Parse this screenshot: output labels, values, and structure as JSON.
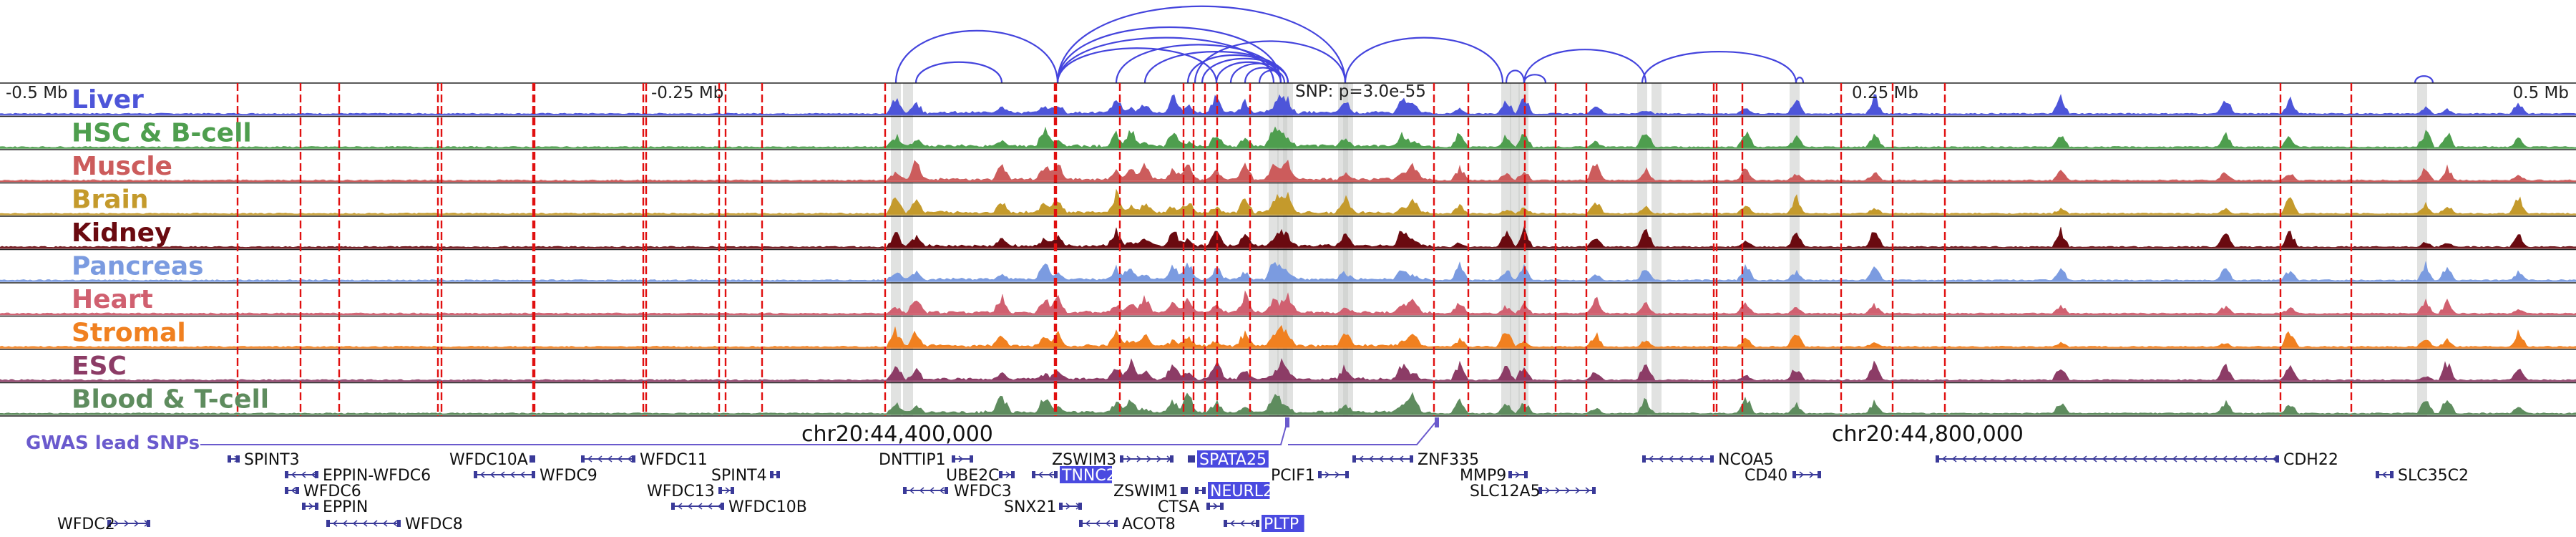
{
  "axis_labels": {
    "left": "-0.5 Mb",
    "mid_left": "-0.25 Mb",
    "mid_right": "0.25 Mb",
    "right": "0.5 Mb"
  },
  "snp_label": "SNP: p=3.0e-55",
  "gwas_label": "GWAS lead SNPs",
  "coords": [
    "chr20:44,400,000",
    "chr20:44,800,000"
  ],
  "tracks": [
    {
      "name": "Liver",
      "color": "#4d55d9"
    },
    {
      "name": "HSC & B-cell",
      "color": "#4e9e4e"
    },
    {
      "name": "Muscle",
      "color": "#cc5c5c"
    },
    {
      "name": "Brain",
      "color": "#c49a2c"
    },
    {
      "name": "Kidney",
      "color": "#6a0a10"
    },
    {
      "name": "Pancreas",
      "color": "#7b9be0"
    },
    {
      "name": "Heart",
      "color": "#d06070"
    },
    {
      "name": "Stromal",
      "color": "#f08020"
    },
    {
      "name": "ESC",
      "color": "#8c3c66"
    },
    {
      "name": "Blood & T-cell",
      "color": "#5e8c5e"
    }
  ],
  "genes": [
    {
      "name": "SPINT3",
      "highlight": false
    },
    {
      "name": "EPPIN-WFDC6",
      "highlight": false
    },
    {
      "name": "WFDC6",
      "highlight": false
    },
    {
      "name": "EPPIN",
      "highlight": false
    },
    {
      "name": "WFDC2",
      "highlight": false
    },
    {
      "name": "WFDC8",
      "highlight": false
    },
    {
      "name": "WFDC10A",
      "highlight": false
    },
    {
      "name": "WFDC9",
      "highlight": false
    },
    {
      "name": "WFDC11",
      "highlight": false
    },
    {
      "name": "SPINT4",
      "highlight": false
    },
    {
      "name": "WFDC13",
      "highlight": false
    },
    {
      "name": "WFDC10B",
      "highlight": false
    },
    {
      "name": "DNTTIP1",
      "highlight": false
    },
    {
      "name": "UBE2C",
      "highlight": false
    },
    {
      "name": "WFDC3",
      "highlight": false
    },
    {
      "name": "SNX21",
      "highlight": false
    },
    {
      "name": "ZSWIM3",
      "highlight": false
    },
    {
      "name": "TNNC2",
      "highlight": true
    },
    {
      "name": "ZSWIM1",
      "highlight": false
    },
    {
      "name": "ACOT8",
      "highlight": false
    },
    {
      "name": "SPATA25",
      "highlight": true
    },
    {
      "name": "NEURL2",
      "highlight": true
    },
    {
      "name": "CTSA",
      "highlight": false
    },
    {
      "name": "PLTP",
      "highlight": true
    },
    {
      "name": "PCIF1",
      "highlight": false
    },
    {
      "name": "ZNF335",
      "highlight": false
    },
    {
      "name": "MMP9",
      "highlight": false
    },
    {
      "name": "SLC12A5",
      "highlight": false
    },
    {
      "name": "NCOA5",
      "highlight": false
    },
    {
      "name": "CD40",
      "highlight": false
    },
    {
      "name": "CDH22",
      "highlight": false
    },
    {
      "name": "SLC35C2",
      "highlight": false
    }
  ],
  "colors": {
    "red_marker": "#e01010",
    "gray_band": "#c8cbc8",
    "arc": "#4444dd",
    "gene": "#3a3a99",
    "highlight_bg": "#4a4ae0"
  }
}
